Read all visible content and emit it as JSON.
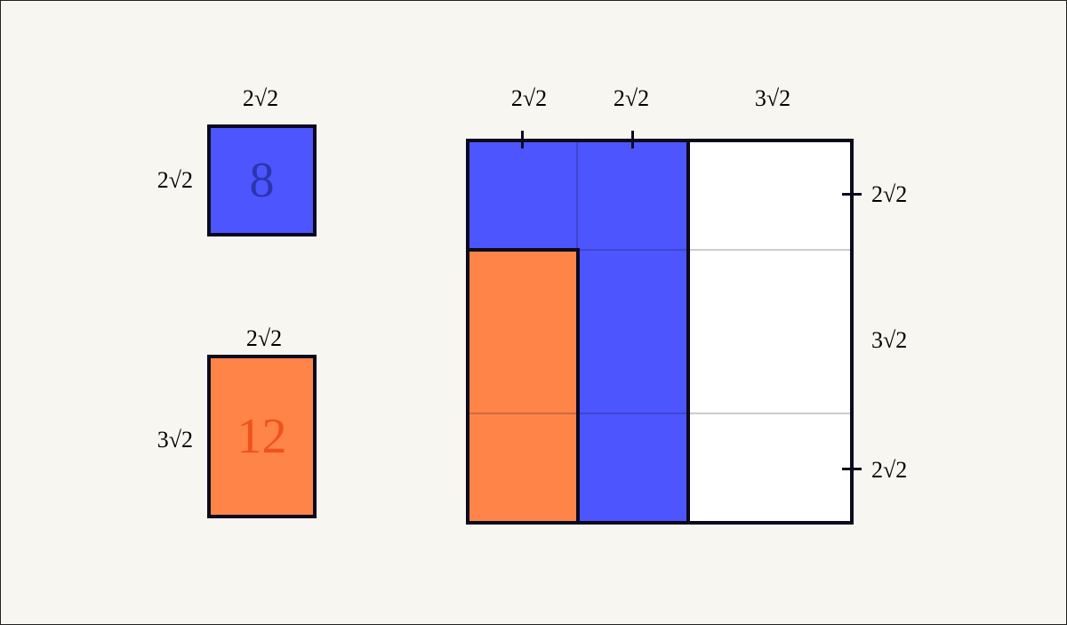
{
  "left_shapes": {
    "square": {
      "area": "8",
      "top_label": "2√2",
      "side_label": "2√2",
      "color": "#4d55fe"
    },
    "rectangle": {
      "area": "12",
      "top_label": "2√2",
      "side_label": "3√2",
      "color": "#fe8448"
    }
  },
  "big_square": {
    "top_labels": [
      "2√2",
      "2√2",
      "3√2"
    ],
    "right_labels": [
      "2√2",
      "3√2",
      "2√2"
    ],
    "colors": {
      "blue": "#4d55fe",
      "orange": "#fe8448",
      "empty": "#ffffff"
    }
  }
}
